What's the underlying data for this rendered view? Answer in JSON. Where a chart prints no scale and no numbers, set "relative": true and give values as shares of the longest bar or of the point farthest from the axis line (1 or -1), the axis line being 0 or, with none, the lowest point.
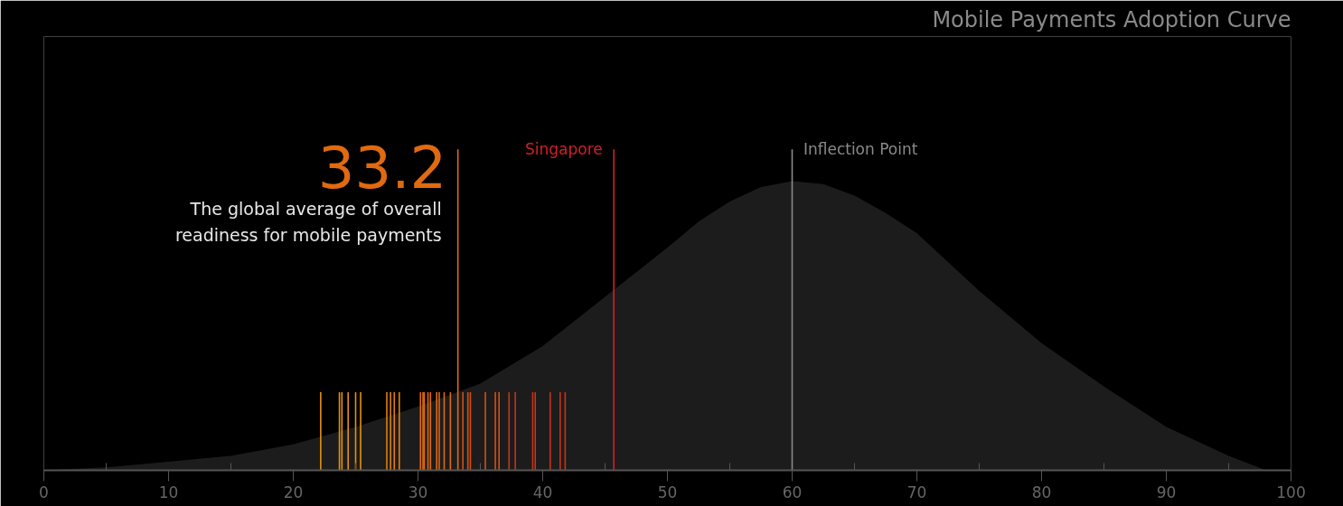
{
  "chart_data": {
    "type": "area",
    "title": "Mobile Payments Adoption Curve",
    "relative": true,
    "x": [
      0,
      5,
      10,
      15,
      20,
      25,
      30,
      35,
      40,
      45,
      50,
      52.5,
      55,
      57.5,
      60,
      62.5,
      65,
      67.5,
      70,
      75,
      80,
      85,
      90,
      95,
      98
    ],
    "series": [
      {
        "color": "#1c1c1c",
        "values": [
          0,
          0.01,
          0.03,
          0.05,
          0.09,
          0.15,
          0.22,
          0.3,
          0.43,
          0.6,
          0.77,
          0.86,
          0.93,
          0.98,
          1.0,
          0.99,
          0.95,
          0.89,
          0.82,
          0.62,
          0.44,
          0.29,
          0.15,
          0.05,
          0
        ]
      }
    ],
    "xlim": [
      0,
      100
    ],
    "xticks": [
      0,
      {
        "value": 5,
        "label": null
      },
      10,
      {
        "value": 15,
        "label": null
      },
      20,
      {
        "value": 25,
        "label": null
      },
      30,
      {
        "value": 35,
        "label": null
      },
      40,
      {
        "value": 45,
        "label": null
      },
      50,
      {
        "value": 55,
        "label": null
      },
      60,
      {
        "value": 65,
        "label": null
      },
      70,
      {
        "value": 75,
        "label": null
      },
      80,
      {
        "value": 85,
        "label": null
      },
      90,
      {
        "value": 95,
        "label": null
      },
      100
    ],
    "tick_labels": "x",
    "grid": false,
    "annotations": [
      {
        "text": "The global average of overall\nreadiness for mobile payments",
        "x": 33.2
      }
    ],
    "ref_lines": [
      {
        "axis": "x",
        "value": 33.2,
        "label": "33.2",
        "color": "#e06a10"
      },
      {
        "axis": "x",
        "value": 45.7,
        "label": "Singapore",
        "color": "#d0202a"
      },
      {
        "axis": "x",
        "value": 60,
        "label": "Inflection Point",
        "color": "#8a8a8a"
      },
      {
        "axis": "x",
        "value": 22.2,
        "color": "#e5920e"
      },
      {
        "axis": "x",
        "value": 23.7,
        "color": "#e5920e"
      },
      {
        "axis": "x",
        "value": 23.9,
        "color": "#e5920e"
      },
      {
        "axis": "x",
        "value": 24.4,
        "color": "#e5920e"
      },
      {
        "axis": "x",
        "value": 25.0,
        "color": "#e5920e"
      },
      {
        "axis": "x",
        "value": 25.4,
        "color": "#e5920e"
      },
      {
        "axis": "x",
        "value": 27.5,
        "color": "#e27f10"
      },
      {
        "axis": "x",
        "value": 27.8,
        "color": "#e27f10"
      },
      {
        "axis": "x",
        "value": 28.1,
        "color": "#e27f10"
      },
      {
        "axis": "x",
        "value": 28.5,
        "color": "#e27f10"
      },
      {
        "axis": "x",
        "value": 30.2,
        "color": "#dd6a12"
      },
      {
        "axis": "x",
        "value": 30.4,
        "color": "#dd6a12"
      },
      {
        "axis": "x",
        "value": 30.5,
        "color": "#dd6a12"
      },
      {
        "axis": "x",
        "value": 30.8,
        "color": "#dd6a12"
      },
      {
        "axis": "x",
        "value": 31.0,
        "color": "#dd6a12"
      },
      {
        "axis": "x",
        "value": 31.5,
        "color": "#dd6a12"
      },
      {
        "axis": "x",
        "value": 31.7,
        "color": "#dd6a12"
      },
      {
        "axis": "x",
        "value": 32.1,
        "color": "#dd6a12"
      },
      {
        "axis": "x",
        "value": 32.6,
        "color": "#dd6a12"
      },
      {
        "axis": "x",
        "value": 33.6,
        "color": "#d45014"
      },
      {
        "axis": "x",
        "value": 34.0,
        "color": "#d45014"
      },
      {
        "axis": "x",
        "value": 34.2,
        "color": "#d45014"
      },
      {
        "axis": "x",
        "value": 35.4,
        "color": "#d45014"
      },
      {
        "axis": "x",
        "value": 36.2,
        "color": "#d45014"
      },
      {
        "axis": "x",
        "value": 36.5,
        "color": "#d45014"
      },
      {
        "axis": "x",
        "value": 37.3,
        "color": "#c93318"
      },
      {
        "axis": "x",
        "value": 37.8,
        "color": "#c93318"
      },
      {
        "axis": "x",
        "value": 39.2,
        "color": "#c93318"
      },
      {
        "axis": "x",
        "value": 39.4,
        "color": "#c93318"
      },
      {
        "axis": "x",
        "value": 40.6,
        "color": "#c93318"
      },
      {
        "axis": "x",
        "value": 41.4,
        "color": "#c93318"
      },
      {
        "axis": "x",
        "value": 41.8,
        "color": "#c93318"
      }
    ]
  }
}
